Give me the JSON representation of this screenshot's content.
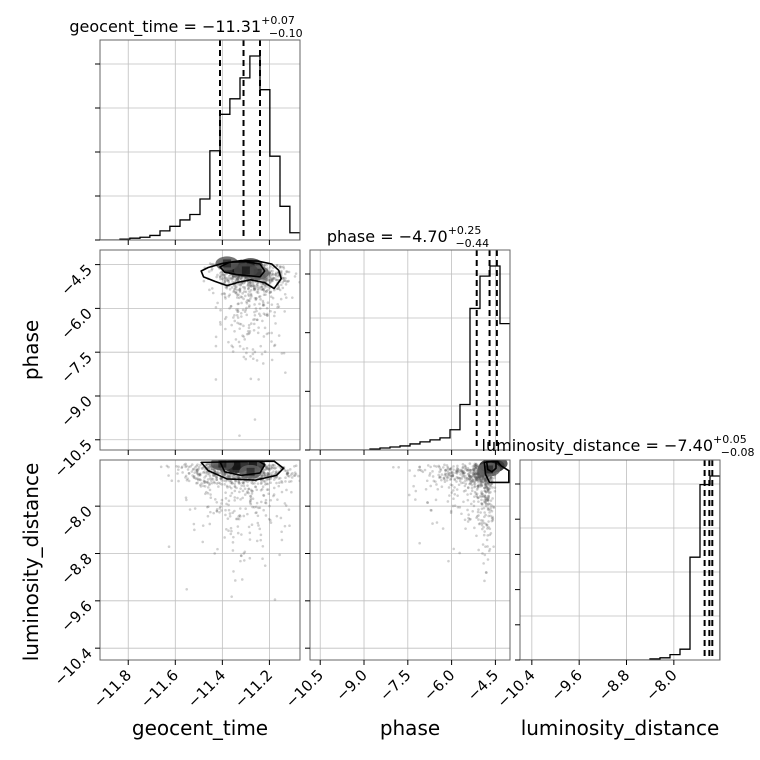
{
  "chart_data": {
    "type": "corner",
    "parameters": [
      "geocent_time",
      "phase",
      "luminosity_distance"
    ],
    "axes": {
      "geocent_time": {
        "range": [
          -11.92,
          -11.07
        ],
        "ticks": [
          -11.8,
          -11.6,
          -11.4,
          -11.2
        ],
        "tick_labels": [
          "−11.8",
          "−11.6",
          "−11.4",
          "−11.2"
        ]
      },
      "phase": {
        "range": [
          -10.85,
          -4.0
        ],
        "ticks": [
          -10.5,
          -9.0,
          -7.5,
          -6.0,
          -4.5
        ],
        "tick_labels": [
          "−10.5",
          "−9.0",
          "−7.5",
          "−6.0",
          "−4.5"
        ]
      },
      "luminosity_distance": {
        "range": [
          -10.6,
          -7.22
        ],
        "ticks": [
          -10.4,
          -9.6,
          -8.8,
          -8.0
        ],
        "tick_labels": [
          "−10.4",
          "−9.6",
          "−8.8",
          "−8.0"
        ]
      }
    },
    "titles": {
      "geocent_time": {
        "name": "geocent_time",
        "median": "−11.31",
        "plus": "+0.07",
        "minus": "−0.10"
      },
      "phase": {
        "name": "phase",
        "median": "−4.70",
        "plus": "+0.25",
        "minus": "−0.44"
      },
      "luminosity_distance": {
        "name": "luminosity_distance",
        "median": "−7.40",
        "plus": "+0.05",
        "minus": "−0.08"
      }
    },
    "quantiles": {
      "geocent_time": [
        -11.41,
        -11.31,
        -11.24
      ],
      "phase": [
        -5.14,
        -4.7,
        -4.45
      ],
      "luminosity_distance": [
        -7.48,
        -7.4,
        -7.35
      ]
    },
    "histograms": {
      "geocent_time": {
        "edges": [
          -11.92,
          -11.878,
          -11.835,
          -11.793,
          -11.75,
          -11.708,
          -11.665,
          -11.623,
          -11.58,
          -11.538,
          -11.495,
          -11.453,
          -11.41,
          -11.368,
          -11.325,
          -11.283,
          -11.24,
          -11.198,
          -11.155,
          -11.113,
          -11.07
        ],
        "counts": [
          0,
          0,
          1,
          2,
          3,
          5,
          10,
          15,
          22,
          28,
          45,
          98,
          138,
          155,
          178,
          202,
          165,
          92,
          37,
          8
        ]
      },
      "phase": {
        "edges": [
          -10.85,
          -10.507,
          -10.165,
          -9.822,
          -9.48,
          -9.137,
          -8.795,
          -8.452,
          -8.11,
          -7.767,
          -7.425,
          -7.083,
          -6.74,
          -6.398,
          -6.055,
          -5.713,
          -5.37,
          -5.028,
          -4.685,
          -4.343,
          -4.0
        ],
        "counts": [
          0,
          0,
          0,
          0,
          0,
          0,
          1,
          2,
          3,
          4,
          6,
          8,
          10,
          12,
          20,
          45,
          140,
          172,
          182,
          125
        ]
      },
      "luminosity_distance": {
        "edges": [
          -10.6,
          -10.431,
          -10.262,
          -10.093,
          -9.924,
          -9.755,
          -9.586,
          -9.417,
          -9.248,
          -9.079,
          -8.91,
          -8.741,
          -8.572,
          -8.403,
          -8.234,
          -8.065,
          -7.896,
          -7.727,
          -7.558,
          -7.389,
          -7.22
        ],
        "counts": [
          0,
          0,
          0,
          0,
          0,
          0,
          0,
          0,
          0,
          0,
          0,
          0,
          0,
          1,
          2,
          5,
          10,
          95,
          162,
          170
        ]
      }
    },
    "contours": {
      "phase_vs_geocent_time": {
        "outer": [
          [
            -11.49,
            -4.72
          ],
          [
            -11.46,
            -4.6
          ],
          [
            -11.4,
            -4.46
          ],
          [
            -11.32,
            -4.36
          ],
          [
            -11.25,
            -4.38
          ],
          [
            -11.19,
            -4.48
          ],
          [
            -11.16,
            -4.7
          ],
          [
            -11.15,
            -4.98
          ],
          [
            -11.18,
            -5.32
          ],
          [
            -11.22,
            -5.12
          ],
          [
            -11.28,
            -5.02
          ],
          [
            -11.33,
            -5.1
          ],
          [
            -11.38,
            -5.22
          ],
          [
            -11.43,
            -5.08
          ],
          [
            -11.48,
            -4.92
          ]
        ],
        "inner": [
          [
            -11.41,
            -4.58
          ],
          [
            -11.37,
            -4.42
          ],
          [
            -11.3,
            -4.4
          ],
          [
            -11.24,
            -4.48
          ],
          [
            -11.22,
            -4.72
          ],
          [
            -11.24,
            -4.92
          ],
          [
            -11.29,
            -4.88
          ],
          [
            -11.34,
            -4.84
          ],
          [
            -11.39,
            -4.76
          ]
        ]
      },
      "luminosity_distance_vs_geocent_time": {
        "outer": [
          [
            -11.49,
            -7.26
          ],
          [
            -11.46,
            -7.4
          ],
          [
            -11.38,
            -7.54
          ],
          [
            -11.26,
            -7.56
          ],
          [
            -11.17,
            -7.48
          ],
          [
            -11.14,
            -7.36
          ],
          [
            -11.18,
            -7.24
          ]
        ],
        "inner": [
          [
            -11.41,
            -7.25
          ],
          [
            -11.39,
            -7.42
          ],
          [
            -11.32,
            -7.48
          ],
          [
            -11.24,
            -7.44
          ],
          [
            -11.22,
            -7.3
          ],
          [
            -11.25,
            -7.23
          ]
        ]
      },
      "luminosity_distance_vs_phase": {
        "outer": [
          [
            -4.88,
            -7.26
          ],
          [
            -4.84,
            -7.46
          ],
          [
            -4.7,
            -7.6
          ],
          [
            -4.4,
            -7.6
          ],
          [
            -4.04,
            -7.6
          ],
          [
            -4.04,
            -7.4
          ],
          [
            -4.3,
            -7.32
          ],
          [
            -4.44,
            -7.24
          ]
        ],
        "inner": [
          [
            -4.8,
            -7.25
          ],
          [
            -4.76,
            -7.38
          ],
          [
            -4.62,
            -7.42
          ],
          [
            -4.48,
            -7.36
          ],
          [
            -4.48,
            -7.24
          ]
        ]
      }
    },
    "density_centers": {
      "phase_vs_geocent_time": [
        [
          -11.34,
          -4.62,
          0.95
        ],
        [
          -11.28,
          -4.52,
          0.8
        ],
        [
          -11.38,
          -4.46,
          0.65
        ],
        [
          -11.25,
          -4.78,
          0.6
        ],
        [
          -11.3,
          -4.7,
          0.75
        ]
      ],
      "luminosity_distance_vs_geocent_time": [
        [
          -11.34,
          -7.32,
          0.95
        ],
        [
          -11.27,
          -7.3,
          0.85
        ],
        [
          -11.4,
          -7.28,
          0.7
        ],
        [
          -11.28,
          -7.42,
          0.6
        ]
      ],
      "luminosity_distance_vs_phase": [
        [
          -4.62,
          -7.32,
          0.95
        ],
        [
          -4.5,
          -7.28,
          0.8
        ],
        [
          -4.72,
          -7.38,
          0.6
        ]
      ]
    },
    "grid": true
  }
}
